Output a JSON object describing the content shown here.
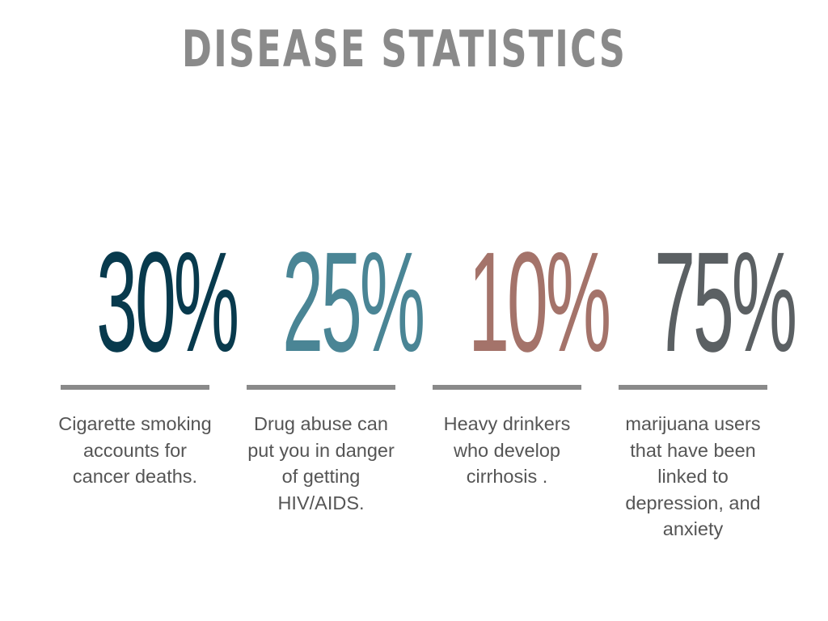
{
  "page": {
    "title": "DISEASE STATISTICS"
  },
  "stats": [
    {
      "value": "30%",
      "color": "#083a4d",
      "description": "Cigarette smoking accounts for cancer deaths."
    },
    {
      "value": "25%",
      "color": "#4a8595",
      "description": "Drug abuse can put you in danger of getting HIV/AIDS."
    },
    {
      "value": "10%",
      "color": "#a4736a",
      "description": "Heavy drinkers who develop cirrhosis ."
    },
    {
      "value": "75%",
      "color": "#5b6063",
      "description": "marijuana users that have been linked to depression, and anxiety"
    }
  ],
  "colors": {
    "title": "#8a8a8a",
    "divider": "#8a8a8a",
    "body_text": "#555555",
    "background": "#ffffff"
  }
}
